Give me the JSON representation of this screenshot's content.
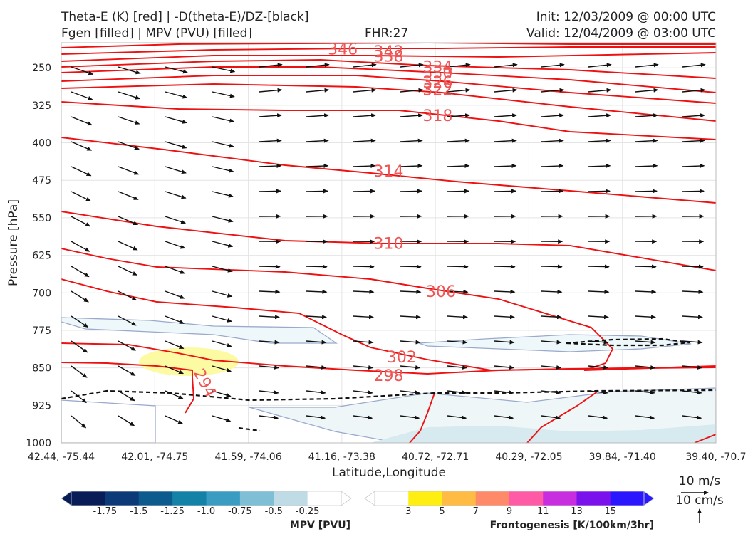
{
  "header": {
    "title_left_1": "Theta-E (K) [red] | -D(theta-E)/DZ-[black]",
    "title_left_2": "Fgen [filled] | MPV (PVU) [filled]",
    "fhr": "FHR:27",
    "init": "Init: 12/03/2009 @ 00:00 UTC",
    "valid": "Valid: 12/04/2009 @ 03:00 UTC"
  },
  "chart_data": {
    "type": "cross-section",
    "xlabel": "Latitude,Longitude",
    "ylabel": "Pressure [hPa]",
    "x_ticks": [
      "42.44, -75.44",
      "42.01, -74.75",
      "41.59, -74.06",
      "41.16, -73.38",
      "40.72, -72.71",
      "40.29, -72.05",
      "39.84, -71.40",
      "39.40, -70.7"
    ],
    "y_ticks": [
      250,
      325,
      400,
      475,
      550,
      625,
      700,
      775,
      850,
      925,
      1000
    ],
    "ylim": [
      1000,
      200
    ],
    "y_scale": "linear, inverted",
    "grid": true,
    "theta_e_contour_labels": [
      {
        "value": "346",
        "x_frac": 0.43,
        "p": 212
      },
      {
        "value": "342",
        "x_frac": 0.5,
        "p": 217
      },
      {
        "value": "338",
        "x_frac": 0.5,
        "p": 226
      },
      {
        "value": "334",
        "x_frac": 0.575,
        "p": 248
      },
      {
        "value": "330",
        "x_frac": 0.575,
        "p": 260
      },
      {
        "value": "326",
        "x_frac": 0.575,
        "p": 278
      },
      {
        "value": "322",
        "x_frac": 0.575,
        "p": 293
      },
      {
        "value": "318",
        "x_frac": 0.575,
        "p": 345
      },
      {
        "value": "314",
        "x_frac": 0.5,
        "p": 456
      },
      {
        "value": "310",
        "x_frac": 0.5,
        "p": 601
      },
      {
        "value": "306",
        "x_frac": 0.58,
        "p": 697
      },
      {
        "value": "302",
        "x_frac": 0.52,
        "p": 828
      },
      {
        "value": "298",
        "x_frac": 0.5,
        "p": 865
      },
      {
        "value": "294",
        "x_frac": 0.22,
        "p": 880
      }
    ],
    "wind_key": {
      "u_label": "10 m/s",
      "w_label": "10 cm/s"
    },
    "colorbar_mpv": {
      "label": "MPV [PVU]",
      "ticks": [
        "-1.75",
        "-1.5",
        "-1.25",
        "-1.0",
        "-0.75",
        "-0.5",
        "-0.25"
      ],
      "colors": [
        "#081d58",
        "#0c3a78",
        "#0d5a8e",
        "#1481a6",
        "#3a9cc0",
        "#7fbfd6",
        "#bfdce6",
        "#ffffff"
      ]
    },
    "colorbar_fgen": {
      "label": "Frontogenesis [K/100km/3hr]",
      "ticks": [
        "3",
        "5",
        "7",
        "9",
        "11",
        "13",
        "15"
      ],
      "colors": [
        "#ffffff",
        "#ffee11",
        "#ffbb44",
        "#ff8a6a",
        "#ff5aa5",
        "#c82ee0",
        "#7a12ee",
        "#2a16ff"
      ]
    },
    "colors": {
      "theta_e": "#ee1111",
      "stability": "#111111",
      "mpv_outline": "#9aaacc"
    }
  }
}
